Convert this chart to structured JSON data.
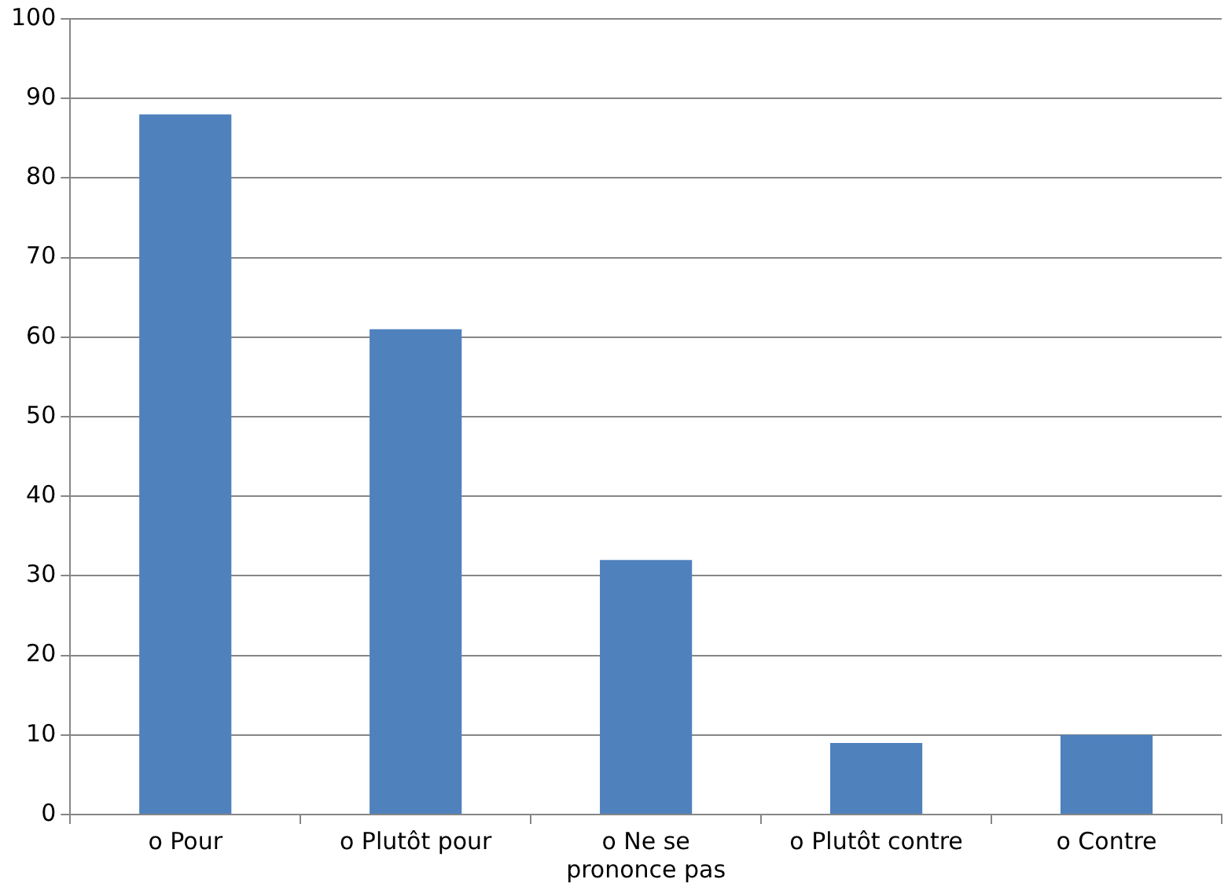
{
  "chart_data": {
    "type": "bar",
    "categories": [
      "o Pour",
      "o Plutôt pour",
      "o Ne se prononce pas",
      "o Plutôt contre",
      "o Contre"
    ],
    "values": [
      88,
      61,
      32,
      9,
      10
    ],
    "color": "#4f81bd",
    "ylim": [
      0,
      100
    ],
    "yticks": [
      0,
      10,
      20,
      30,
      40,
      50,
      60,
      70,
      80,
      90,
      100
    ],
    "grid": "y",
    "legend": false
  }
}
